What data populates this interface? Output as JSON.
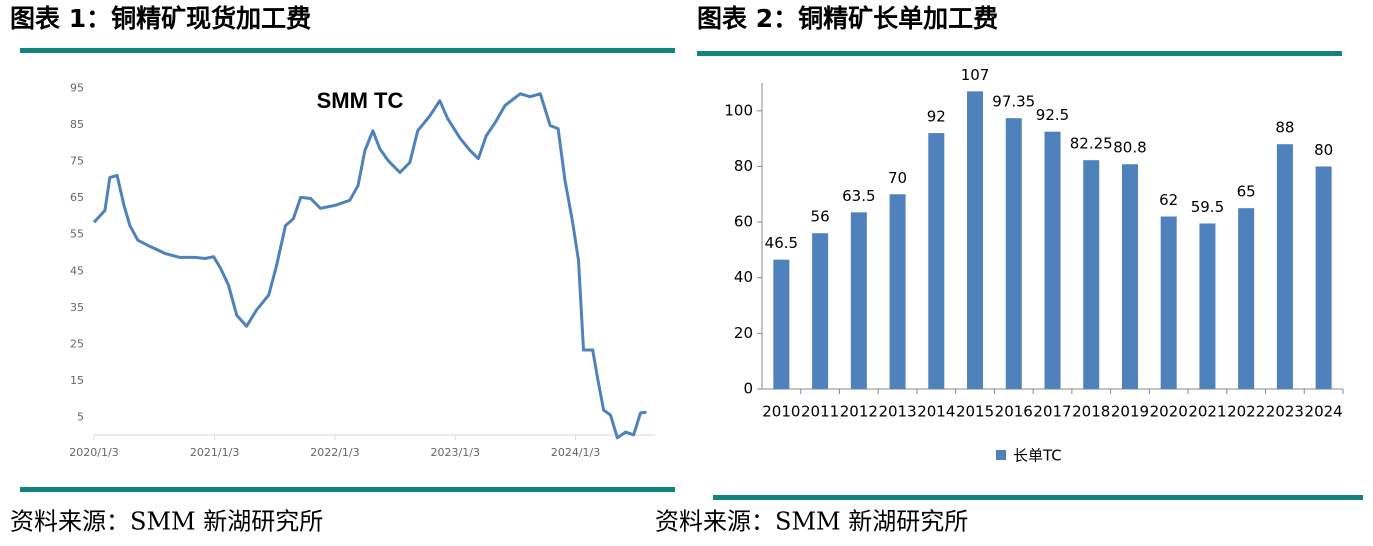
{
  "chart_data": [
    {
      "type": "line",
      "caption": "图表 1：铜精矿现货加工费",
      "title": "SMM TC",
      "source": "资料来源：SMM 新湖研究所",
      "x": [
        "2020/1/3",
        "2020/2/5",
        "2020/2/20",
        "2020/3/13",
        "2020/4/3",
        "2020/4/21",
        "2020/5/15",
        "2020/6/21",
        "2020/8/5",
        "2020/9/19",
        "2020/11/4",
        "2020/12/5",
        "2020/12/31",
        "2021/1/21",
        "2021/2/14",
        "2021/3/11",
        "2021/4/10",
        "2021/5/10",
        "2021/6/16",
        "2021/7/10",
        "2021/8/6",
        "2021/8/30",
        "2021/9/21",
        "2021/10/21",
        "2021/11/20",
        "2022/1/3",
        "2022/2/17",
        "2022/3/14",
        "2022/4/4",
        "2022/4/28",
        "2022/5/19",
        "2022/6/13",
        "2022/7/19",
        "2022/8/18",
        "2022/9/11",
        "2022/10/18",
        "2022/11/17",
        "2022/12/11",
        "2023/1/18",
        "2023/2/17",
        "2023/3/14",
        "2023/4/7",
        "2023/5/4",
        "2023/6/3",
        "2023/7/19",
        "2023/8/18",
        "2023/9/18",
        "2023/10/18",
        "2023/11/11",
        "2023/12/2",
        "2023/12/24",
        "2024/1/12",
        "2024/1/27",
        "2024/2/24",
        "2024/3/10",
        "2024/3/28",
        "2024/4/18",
        "2024/5/9",
        "2024/6/3",
        "2024/6/27",
        "2024/7/18",
        "2024/8/5"
      ],
      "series": [
        {
          "name": "SMM TC",
          "color": "#4f81bd",
          "values": [
            58.4,
            61.6,
            70.6,
            71.2,
            63,
            57.5,
            53.5,
            51.8,
            49.9,
            48.8,
            48.8,
            48.5,
            49,
            45.8,
            41.2,
            33,
            30,
            34.4,
            38.5,
            46.6,
            57.5,
            59.4,
            65.2,
            64.9,
            62.2,
            63,
            64.4,
            68.4,
            78,
            83.4,
            78.5,
            75.3,
            72,
            74.7,
            83.4,
            87.5,
            91.6,
            86.7,
            81.3,
            78,
            75.8,
            82,
            85.6,
            90.3,
            93.5,
            92.7,
            93.5,
            84.8,
            84,
            69.8,
            58.9,
            48,
            23.5,
            23.5,
            15.8,
            7.1,
            5.7,
            -0.5,
            1.1,
            0.3,
            6.3,
            6.5
          ]
        }
      ],
      "xlim": [
        "2020/1/3",
        "2024/8/31"
      ],
      "xticks": [
        "2020/1/3",
        "2021/1/3",
        "2022/1/3",
        "2023/1/3",
        "2024/1/3"
      ],
      "ylim": [
        0,
        100
      ],
      "yticks": [
        5,
        15,
        25,
        35,
        45,
        55,
        65,
        75,
        85,
        95
      ],
      "grid": false
    },
    {
      "type": "bar",
      "caption": "图表 2：铜精矿长单加工费",
      "source": "资料来源：SMM 新湖研究所",
      "categories": [
        "2010",
        "2011",
        "2012",
        "2013",
        "2014",
        "2015",
        "2016",
        "2017",
        "2018",
        "2019",
        "2020",
        "2021",
        "2022",
        "2023",
        "2024"
      ],
      "series": [
        {
          "name": "长单TC",
          "color": "#4f81bd",
          "values": [
            46.5,
            56,
            63.5,
            70,
            92,
            107,
            97.35,
            92.5,
            82.25,
            80.8,
            62,
            59.5,
            65,
            88,
            80
          ]
        }
      ],
      "ylim": [
        0,
        110
      ],
      "yticks": [
        0,
        20,
        40,
        60,
        80,
        100
      ],
      "grid": false,
      "legend": "bottom"
    }
  ]
}
